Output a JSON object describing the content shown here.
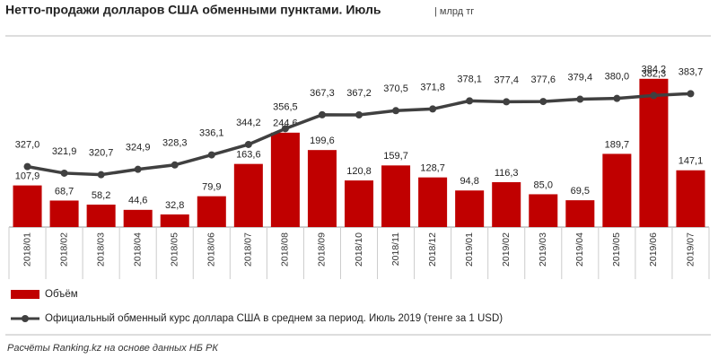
{
  "chart_data": {
    "type": "bar",
    "title": "Нетто-продажи долларов США обменными пунктами. Июль",
    "subtitle": "| млрд тг",
    "source": "Расчёты Ranking.kz на основе данных НБ РК",
    "categories": [
      "2018/01",
      "2018/02",
      "2018/03",
      "2018/04",
      "2018/05",
      "2018/06",
      "2018/07",
      "2018/08",
      "2018/09",
      "2018/10",
      "2018/11",
      "2018/12",
      "2019/01",
      "2019/02",
      "2019/03",
      "2019/04",
      "2019/05",
      "2019/06",
      "2019/07"
    ],
    "series": [
      {
        "name": "Объём",
        "color": "#c00000",
        "values": [
          107.9,
          68.7,
          58.2,
          44.6,
          32.8,
          79.9,
          163.6,
          244.6,
          199.6,
          120.8,
          159.7,
          128.7,
          94.8,
          116.3,
          85.0,
          69.5,
          189.7,
          384.2,
          147.1
        ],
        "value_labels": [
          "107,9",
          "68,7",
          "58,2",
          "44,6",
          "32,8",
          "79,9",
          "163,6",
          "244,6",
          "199,6",
          "120,8",
          "159,7",
          "128,7",
          "94,8",
          "116,3",
          "85,0",
          "69,5",
          "189,7",
          "384,2",
          "147,1"
        ]
      },
      {
        "name": "Официальный обменный курс доллара США в среднем за период. Июль 2019 (тенге за 1 USD)",
        "color": "#404040",
        "type": "line",
        "axis": "y2",
        "values": [
          327.0,
          321.9,
          320.7,
          324.9,
          328.3,
          336.1,
          344.2,
          356.5,
          367.3,
          367.2,
          370.5,
          371.8,
          378.1,
          377.4,
          377.6,
          379.4,
          380.0,
          382.3,
          383.7
        ],
        "value_labels": [
          "327,0",
          "321,9",
          "320,7",
          "324,9",
          "328,3",
          "336,1",
          "344,2",
          "356,5",
          "367,3",
          "367,2",
          "370,5",
          "371,8",
          "378,1",
          "377,4",
          "377,6",
          "379,4",
          "380,0",
          "382,3",
          "383,7"
        ]
      }
    ],
    "ylim": [
      0,
      400
    ],
    "y2lim": [
      280,
      400
    ]
  }
}
